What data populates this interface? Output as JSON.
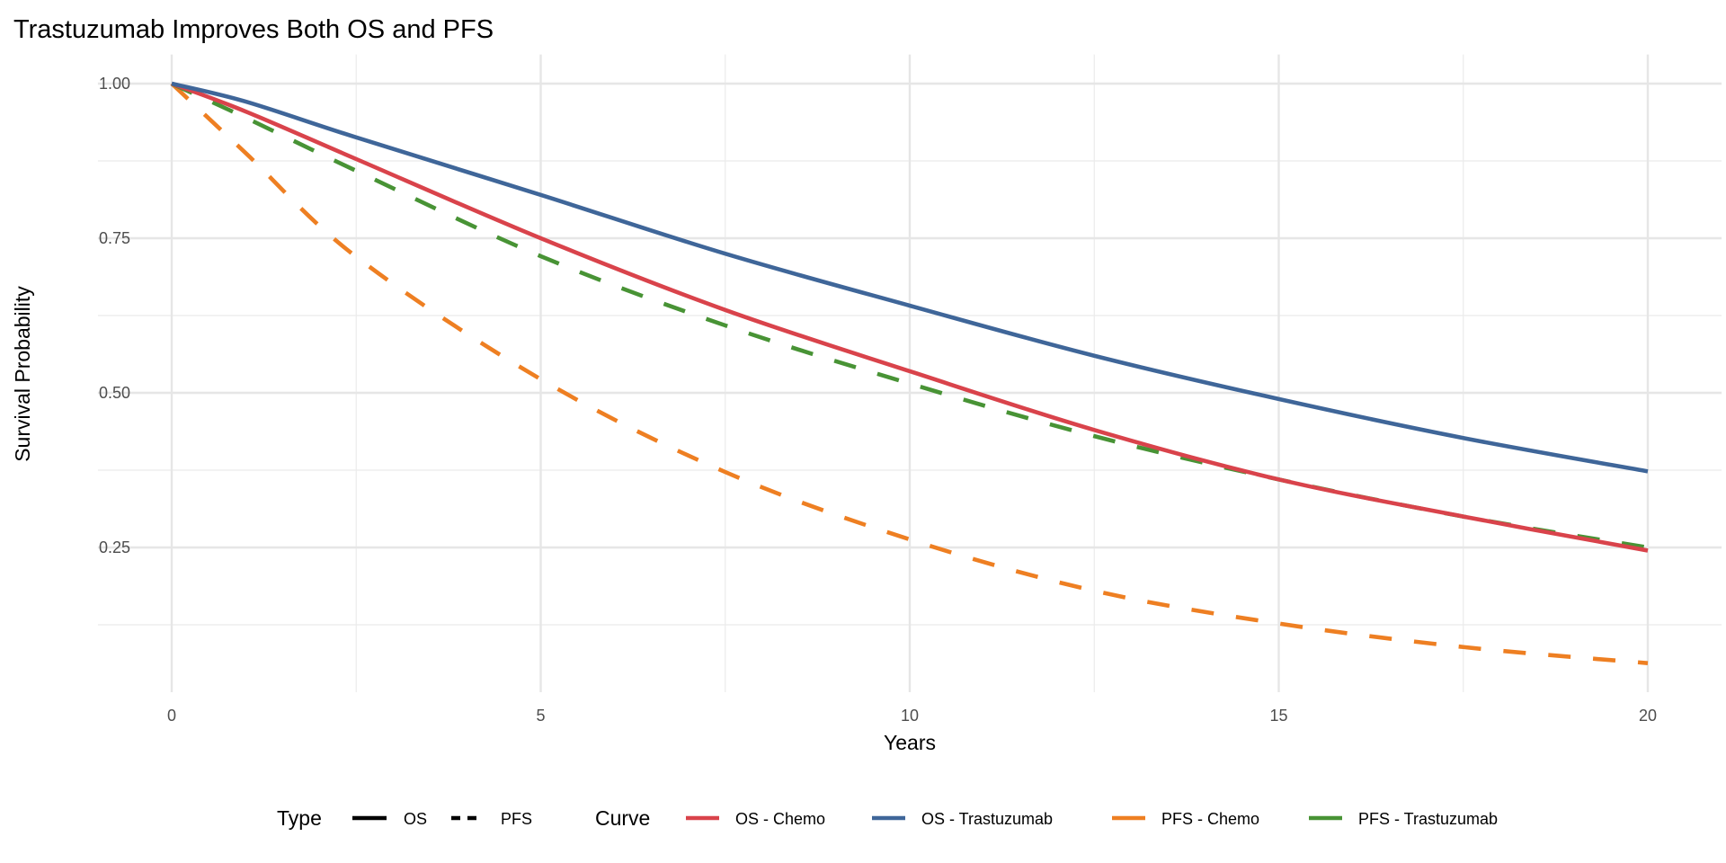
{
  "chart_data": {
    "type": "line",
    "title": "Trastuzumab Improves Both OS and PFS",
    "xlabel": "Years",
    "ylabel": "Survival Probability",
    "xlim": [
      -1,
      21
    ],
    "ylim": [
      0.016,
      1.047
    ],
    "x_ticks": [
      0,
      5,
      10,
      15,
      20
    ],
    "x_tick_labels": [
      "0",
      "5",
      "10",
      "15",
      "20"
    ],
    "y_ticks": [
      0.25,
      0.5,
      0.75,
      1.0
    ],
    "y_tick_labels": [
      "0.25",
      "0.50",
      "0.75",
      "1.00"
    ],
    "x_minor": [
      2.5,
      7.5,
      12.5,
      17.5
    ],
    "y_minor": [
      0.125,
      0.375,
      0.625,
      0.875
    ],
    "grid": true,
    "legend_position": "bottom",
    "x": [
      0,
      1,
      2.5,
      5,
      7.5,
      10,
      12.5,
      15,
      17.5,
      20
    ],
    "series": [
      {
        "name": "OS - Chemo",
        "type": "OS",
        "color": "#D9434B",
        "values": [
          1.0,
          0.955,
          0.878,
          0.75,
          0.634,
          0.535,
          0.44,
          0.36,
          0.3,
          0.245
        ]
      },
      {
        "name": "OS - Trastuzumab",
        "type": "OS",
        "color": "#3F6699",
        "values": [
          1.0,
          0.971,
          0.913,
          0.82,
          0.725,
          0.641,
          0.56,
          0.49,
          0.427,
          0.373
        ]
      },
      {
        "name": "PFS - Chemo",
        "type": "PFS",
        "color": "#EE7F22",
        "values": [
          1.0,
          0.888,
          0.72,
          0.522,
          0.372,
          0.263,
          0.18,
          0.127,
          0.089,
          0.063
        ]
      },
      {
        "name": "PFS - Trastuzumab",
        "type": "PFS",
        "color": "#489335",
        "values": [
          1.0,
          0.945,
          0.859,
          0.721,
          0.609,
          0.515,
          0.43,
          0.36,
          0.3,
          0.25
        ]
      }
    ],
    "legend": {
      "type_title": "Type",
      "type_items": [
        {
          "label": "OS",
          "linetype": "solid"
        },
        {
          "label": "PFS",
          "linetype": "dashed"
        }
      ],
      "curve_title": "Curve",
      "curve_items": [
        "OS - Chemo",
        "OS - Trastuzumab",
        "PFS - Chemo",
        "PFS - Trastuzumab"
      ]
    }
  }
}
